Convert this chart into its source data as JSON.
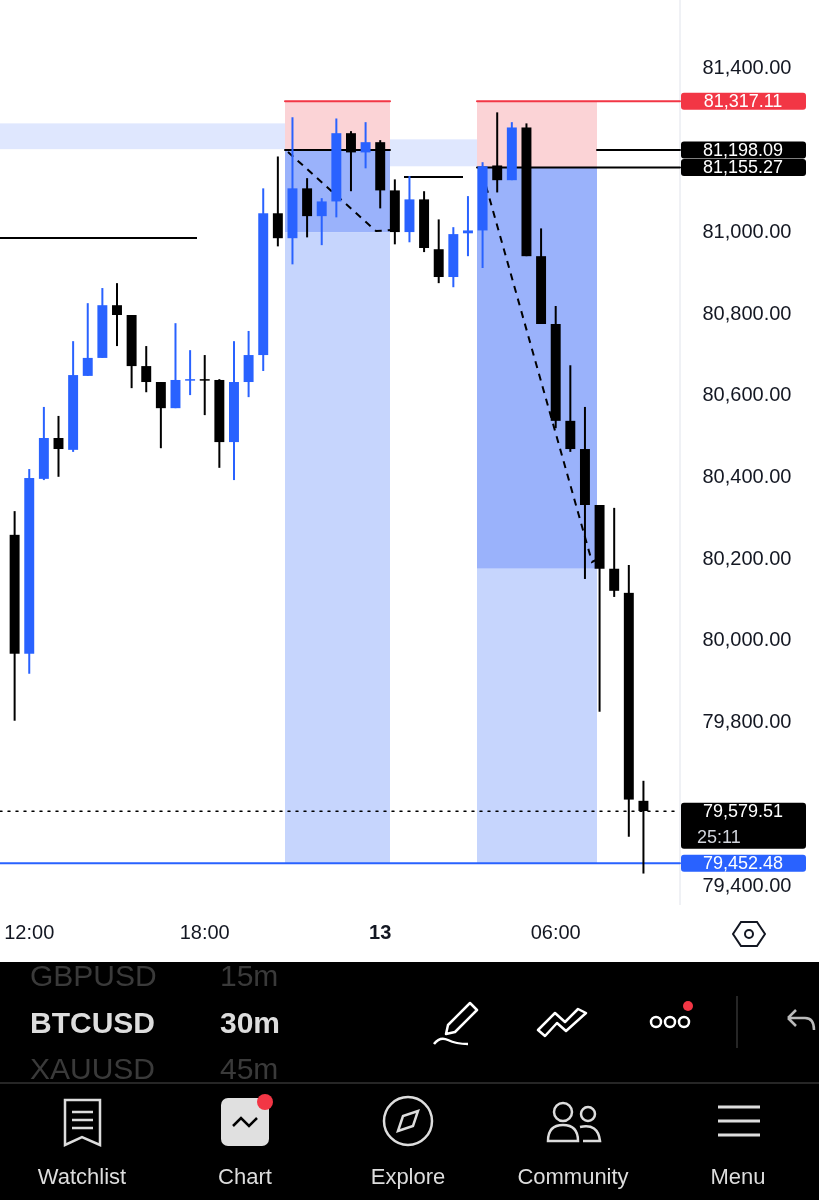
{
  "chart_data": {
    "type": "candlestick",
    "categories": [
      null,
      "12:00",
      null,
      null,
      null,
      null,
      null,
      null,
      null,
      null,
      null,
      null,
      null,
      "18:00",
      null,
      null,
      null,
      null,
      null,
      null,
      null,
      null,
      null,
      null,
      null,
      "13",
      null,
      null,
      null,
      null,
      null,
      null,
      null,
      null,
      null,
      null,
      null,
      "06:00",
      null,
      null,
      null,
      null,
      null,
      null
    ],
    "ohlc": [
      [
        80256,
        80314,
        79801,
        79965
      ],
      [
        79965,
        80417,
        79916,
        80395
      ],
      [
        80393,
        80569,
        80390,
        80493
      ],
      [
        80493,
        80547,
        80398,
        80466
      ],
      [
        80464,
        80730,
        80459,
        80647
      ],
      [
        80645,
        80823,
        80645,
        80689
      ],
      [
        80689,
        80860,
        80689,
        80818
      ],
      [
        80818,
        80872,
        80718,
        80794
      ],
      [
        80794,
        80794,
        80615,
        80669
      ],
      [
        80669,
        80718,
        80605,
        80630
      ],
      [
        80630,
        80630,
        80468,
        80566
      ],
      [
        80566,
        80774,
        80566,
        80635
      ],
      [
        80635,
        80708,
        80598,
        80637
      ],
      [
        80637,
        80696,
        80549,
        80635
      ],
      [
        80635,
        80637,
        80420,
        80483
      ],
      [
        80483,
        80730,
        80390,
        80630
      ],
      [
        80630,
        80755,
        80593,
        80696
      ],
      [
        80696,
        81104,
        80657,
        81043
      ],
      [
        81043,
        81182,
        80962,
        80982
      ],
      [
        80982,
        81278,
        80918,
        81104
      ],
      [
        81104,
        81129,
        80984,
        81036
      ],
      [
        81036,
        81080,
        80965,
        81072
      ],
      [
        81072,
        81275,
        81033,
        81239
      ],
      [
        81239,
        81244,
        81097,
        81192
      ],
      [
        81192,
        81266,
        81153,
        81217
      ],
      [
        81217,
        81222,
        81055,
        81099
      ],
      [
        81099,
        81126,
        80967,
        80997
      ],
      [
        80997,
        81134,
        80972,
        81077
      ],
      [
        81077,
        81097,
        80948,
        80958
      ],
      [
        80955,
        81028,
        80872,
        80887
      ],
      [
        80887,
        81009,
        80862,
        80992
      ],
      [
        80994,
        81085,
        80938,
        81001
      ],
      [
        81001,
        81168,
        80909,
        81158
      ],
      [
        81160,
        81290,
        81094,
        81124
      ],
      [
        81124,
        81266,
        81124,
        81253
      ],
      [
        81253,
        81263,
        80938,
        80938
      ],
      [
        80938,
        81006,
        80772,
        80772
      ],
      [
        80772,
        80816,
        80517,
        80535
      ],
      [
        80535,
        80671,
        80459,
        80466
      ],
      [
        80466,
        80569,
        80148,
        80329
      ],
      [
        80329,
        80329,
        79823,
        80173
      ],
      [
        80173,
        80322,
        80104,
        80119
      ],
      [
        80114,
        80182,
        79517,
        79608
      ],
      [
        79605,
        79654,
        79427,
        79580
      ]
    ],
    "colors": [
      "#000000",
      "#2962ff",
      "#2962ff",
      "#000000",
      "#2962ff",
      "#2962ff",
      "#2962ff",
      "#000000",
      "#000000",
      "#000000",
      "#000000",
      "#2962ff",
      "#2962ff",
      "#000000",
      "#000000",
      "#2962ff",
      "#2962ff",
      "#2962ff",
      "#000000",
      "#2962ff",
      "#000000",
      "#2962ff",
      "#2962ff",
      "#000000",
      "#2962ff",
      "#000000",
      "#000000",
      "#2962ff",
      "#000000",
      "#000000",
      "#2962ff",
      "#2962ff",
      "#2962ff",
      "#000000",
      "#2962ff",
      "#000000",
      "#000000",
      "#000000",
      "#000000",
      "#000000",
      "#000000",
      "#000000",
      "#000000",
      "#000000"
    ],
    "ylim": [
      79350,
      81565
    ],
    "yticks": [
      {
        "value": 79400,
        "label": "79,400.00"
      },
      {
        "value": 79800,
        "label": "79,800.00"
      },
      {
        "value": 80000,
        "label": "80,000.00"
      },
      {
        "value": 80200,
        "label": "80,200.00"
      },
      {
        "value": 80400,
        "label": "80,400.00"
      },
      {
        "value": 80600,
        "label": "80,600.00"
      },
      {
        "value": 80800,
        "label": "80,800.00"
      },
      {
        "value": 81000,
        "label": "81,000.00"
      },
      {
        "value": 81400,
        "label": "81,400.00"
      }
    ],
    "ref_lines": [
      {
        "axis": "y",
        "value": 81317.11,
        "label": "81,317.11",
        "color": "#f23645",
        "line_style": "solid"
      },
      {
        "axis": "y",
        "value": 81198.09,
        "label": "81,198.09",
        "color": "#000000",
        "line_style": "solid"
      },
      {
        "axis": "y",
        "value": 81155.27,
        "label": "81,155.27",
        "color": "#000000",
        "line_style": "solid"
      },
      {
        "axis": "y",
        "value": 79579.51,
        "label": "79,579.51",
        "color": "#000000",
        "line_style": "dotted"
      },
      {
        "axis": "y",
        "value": 79452.48,
        "label": "79,452.48",
        "color": "#2962ff",
        "line_style": "solid"
      }
    ],
    "bands": [
      {
        "axis": "y",
        "from": 81200,
        "to": 81263,
        "color": "#d4dffe"
      },
      {
        "axis": "y",
        "from": 81158,
        "to": 81224,
        "color": "#d4dffe"
      },
      {
        "axis": "y",
        "from": 81198.09,
        "to": 81317.11,
        "color": "#fbd3d6"
      },
      {
        "axis": "y",
        "from": 80997,
        "to": 81198.09,
        "color": "#9ab2fb"
      },
      {
        "axis": "y",
        "from": 79452.48,
        "to": 80997,
        "color": "#c6d5fd"
      },
      {
        "axis": "y",
        "from": 81155.27,
        "to": 81317.11,
        "color": "#fbd3d6"
      },
      {
        "axis": "y",
        "from": 80173,
        "to": 81155.27,
        "color": "#9ab2fb"
      },
      {
        "axis": "y",
        "from": 79452.48,
        "to": 80173,
        "color": "#c6d5fd"
      }
    ],
    "annotations": [
      "25:11",
      "GBPUSD",
      "15m",
      "BTCUSD",
      "30m",
      "XAUUSD",
      "45m",
      "Watchlist",
      "Chart",
      "Explore",
      "Community",
      "Menu"
    ]
  }
}
